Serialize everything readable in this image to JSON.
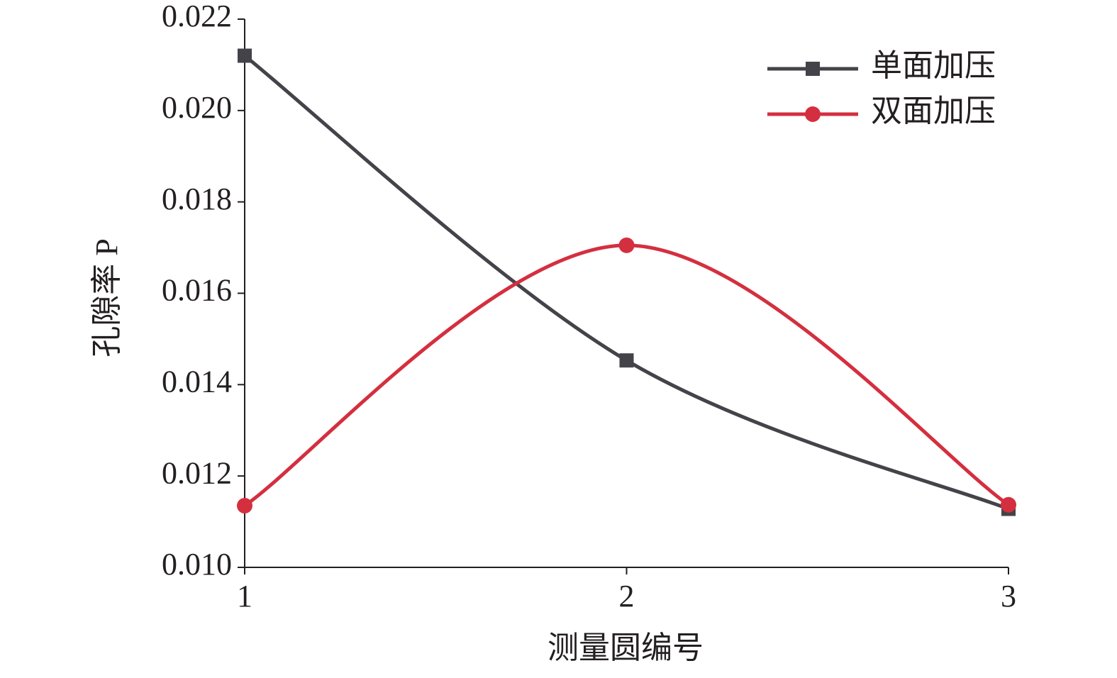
{
  "chart_data": {
    "type": "line",
    "x_label": "测量圆编号",
    "y_label": "孔隙率 P",
    "x": [
      1,
      2,
      3
    ],
    "series": [
      {
        "name": "单面加压",
        "color": "#434349",
        "marker": "square",
        "values": [
          0.0212,
          0.01453,
          0.01128
        ]
      },
      {
        "name": "双面加压",
        "color": "#d42f3f",
        "marker": "circle",
        "values": [
          0.01135,
          0.01705,
          0.01137
        ]
      }
    ],
    "xlim": [
      1,
      3
    ],
    "xticks": [
      1,
      2,
      3
    ],
    "ylim": [
      0.01,
      0.022
    ],
    "yticks": [
      {
        "value": 0.01,
        "label": "0.010"
      },
      {
        "value": 0.012,
        "label": "0.012"
      },
      {
        "value": 0.014,
        "label": "0.014"
      },
      {
        "value": 0.016,
        "label": "0.016"
      },
      {
        "value": 0.018,
        "label": "0.018"
      },
      {
        "value": 0.02,
        "label": "0.020"
      },
      {
        "value": 0.022,
        "label": "0.022"
      }
    ],
    "smooth": true,
    "legend": "top-right"
  }
}
